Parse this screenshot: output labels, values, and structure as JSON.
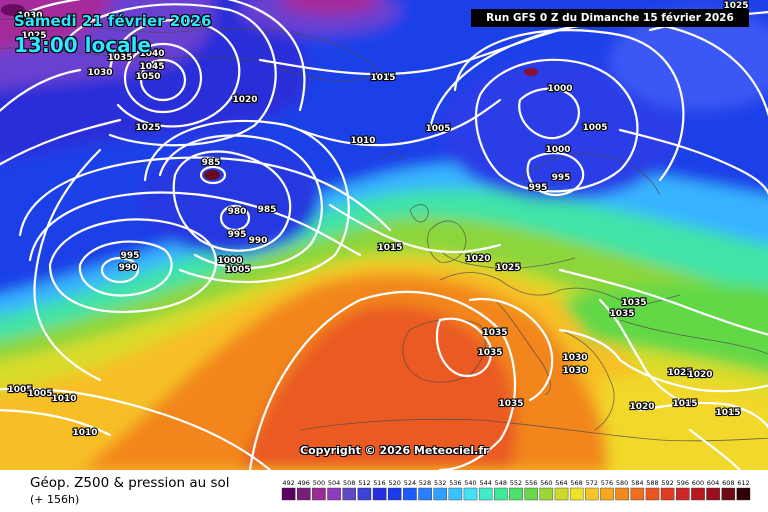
{
  "header": {
    "date": "Samedi 21 février 2026",
    "time": "13:00 locale",
    "run": "Run GFS 0 Z du Dimanche 15 février 2026"
  },
  "copyright": "Copyright © 2026 Meteociel.fr",
  "legend": {
    "title": "Géop. Z500 & pression au sol",
    "subtitle": "(+ 156h)",
    "scale_values": [
      "492",
      "496",
      "500",
      "504",
      "508",
      "512",
      "516",
      "520",
      "524",
      "528",
      "532",
      "536",
      "540",
      "544",
      "548",
      "552",
      "556",
      "560",
      "564",
      "568",
      "572",
      "576",
      "580",
      "584",
      "588",
      "592",
      "596",
      "600",
      "604",
      "608",
      "612"
    ],
    "scale_colors": [
      "#5a0060",
      "#7a1d78",
      "#9a2c96",
      "#8e3bbf",
      "#6048c8",
      "#3a44d6",
      "#2531e0",
      "#1c3af0",
      "#1c5cff",
      "#2a7fff",
      "#31a0ff",
      "#3ac2ff",
      "#44e0f4",
      "#40ecc8",
      "#3fe99a",
      "#4ee06a",
      "#6ad84a",
      "#9cd633",
      "#cbd92a",
      "#efe02a",
      "#f7c528",
      "#f7a722",
      "#f38a1f",
      "#ee6f1e",
      "#e8551f",
      "#de3b23",
      "#cf2727",
      "#b81a22",
      "#9a101c",
      "#6e0a14",
      "#300006"
    ]
  },
  "isobar_labels": [
    "1030",
    "1025",
    "1040",
    "1035",
    "1045",
    "1050",
    "1030",
    "1020",
    "1015",
    "1000",
    "1005",
    "1025",
    "1010",
    "985",
    "980",
    "985",
    "990",
    "995",
    "995",
    "990",
    "1000",
    "1005",
    "1000",
    "995",
    "995",
    "1005",
    "1025",
    "1015",
    "1020",
    "1025",
    "1035",
    "1035",
    "1035",
    "1035",
    "1030",
    "1030",
    "1025",
    "1020",
    "1020",
    "1015",
    "1015",
    "1005",
    "1005",
    "1010",
    "1010",
    "1035"
  ]
}
